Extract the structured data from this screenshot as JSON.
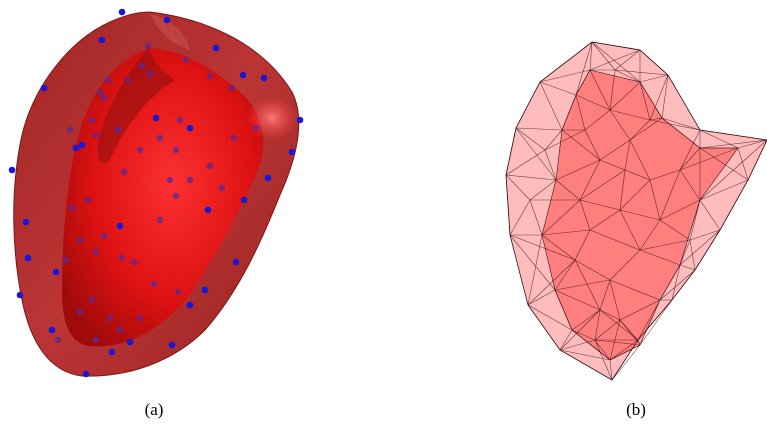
{
  "figure": {
    "panels": [
      {
        "caption": "(a)"
      },
      {
        "caption": "(b)"
      }
    ],
    "colors": {
      "outer_surface": "#b02a2a",
      "inner_surface": "#e01414",
      "highlight": "#ff6a6a",
      "sample_point": "#1a18d8",
      "sample_point_inside": "#5a2a9a",
      "mesh_fill": "#ff5a5a",
      "mesh_edge": "#3a1010"
    }
  }
}
